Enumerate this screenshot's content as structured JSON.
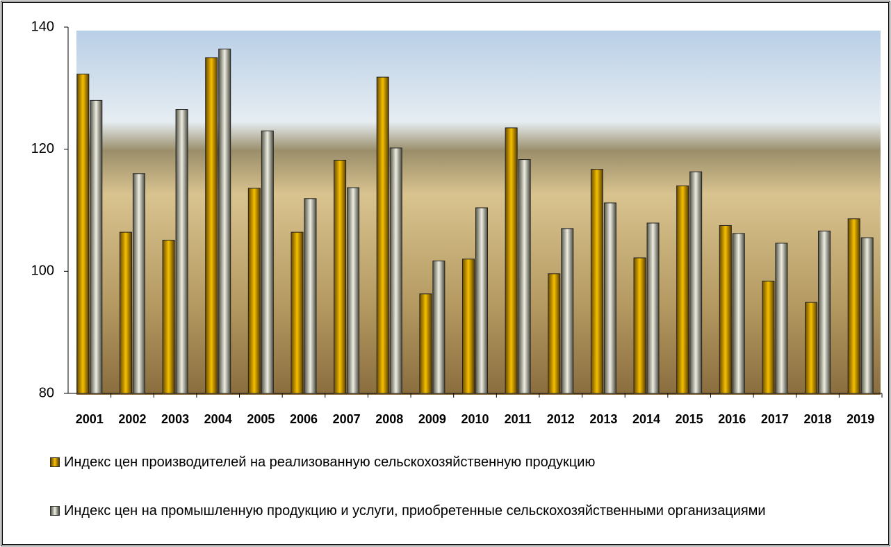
{
  "chart_data": {
    "type": "bar",
    "categories": [
      "2001",
      "2002",
      "2003",
      "2004",
      "2005",
      "2006",
      "2007",
      "2008",
      "2009",
      "2010",
      "2011",
      "2012",
      "2013",
      "2014",
      "2015",
      "2016",
      "2017",
      "2018",
      "2019"
    ],
    "series": [
      {
        "name": "Индекс цен производителей на реализованную сельскохозяйственную продукцию",
        "color": "#e0a800",
        "values": [
          132.3,
          106.4,
          105.1,
          135.0,
          113.6,
          106.4,
          118.2,
          131.8,
          96.3,
          102.0,
          123.5,
          99.6,
          116.7,
          102.2,
          114.0,
          107.5,
          98.4,
          94.9,
          108.6
        ]
      },
      {
        "name": "Индекс цен на промышленную продукцию и услуги, приобретенные сельскохозяйственными организациями",
        "color": "#c8c8b8",
        "values": [
          128.0,
          116.0,
          126.5,
          136.4,
          123.0,
          111.9,
          113.7,
          120.2,
          101.7,
          110.4,
          118.3,
          107.0,
          111.2,
          107.9,
          116.3,
          106.2,
          104.6,
          106.6,
          105.5
        ]
      }
    ],
    "ylim": [
      80,
      140
    ],
    "yticks": [
      80,
      100,
      120,
      140
    ]
  }
}
